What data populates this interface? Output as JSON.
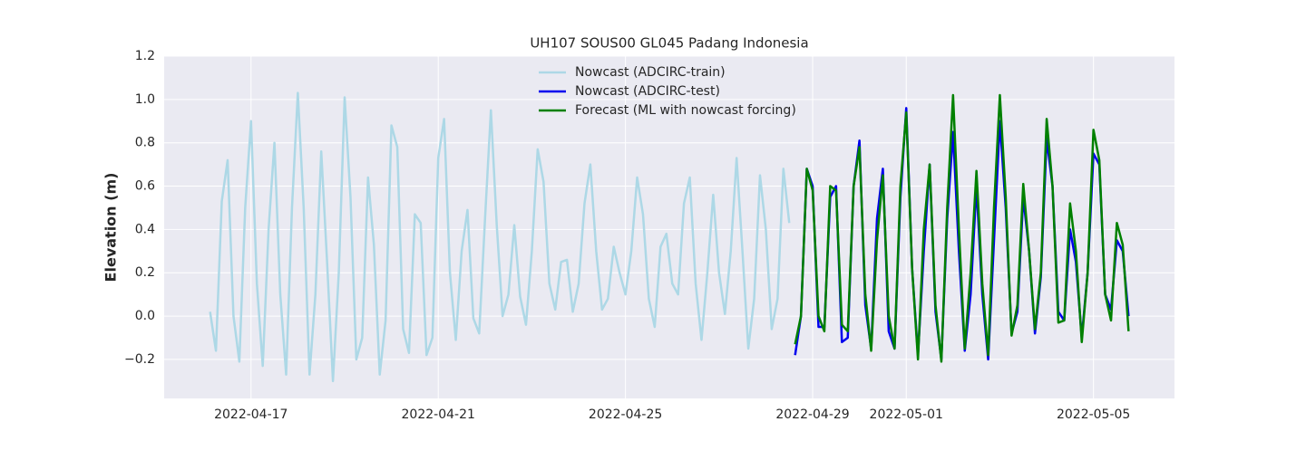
{
  "chart_data": {
    "type": "line",
    "title": "UH107 SOUS00 GL045 Padang Indonesia",
    "y_label": "Elevation (m)",
    "xlim": [
      "2022-04-15 03:27",
      "2022-05-06 17:33"
    ],
    "xticks": [
      "2022-04-17",
      "2022-04-21",
      "2022-04-25",
      "2022-04-29",
      "2022-05-01",
      "2022-05-05"
    ],
    "ylim": [
      -0.38,
      1.2
    ],
    "yticks": [
      {
        "value": -0.2,
        "label": "−0.2"
      },
      {
        "value": 0,
        "label": "0.0"
      },
      0.2,
      0.4,
      0.6,
      0.8,
      {
        "value": 1,
        "label": "1.0"
      },
      1.2
    ],
    "grid": true,
    "legend": "upper center",
    "series": [
      {
        "name": "Nowcast (ADCIRC-train)",
        "color": "#add8e6",
        "x": [
          "2022-04-16 03:00",
          "2022-04-16 06:00",
          "2022-04-16 09:00",
          "2022-04-16 12:00",
          "2022-04-16 15:00",
          "2022-04-16 18:00",
          "2022-04-16 21:00",
          "2022-04-17 00:00",
          "2022-04-17 03:00",
          "2022-04-17 06:00",
          "2022-04-17 09:00",
          "2022-04-17 12:00",
          "2022-04-17 15:00",
          "2022-04-17 18:00",
          "2022-04-17 21:00",
          "2022-04-18 00:00",
          "2022-04-18 03:00",
          "2022-04-18 06:00",
          "2022-04-18 09:00",
          "2022-04-18 12:00",
          "2022-04-18 15:00",
          "2022-04-18 18:00",
          "2022-04-18 21:00",
          "2022-04-19 00:00",
          "2022-04-19 03:00",
          "2022-04-19 06:00",
          "2022-04-19 09:00",
          "2022-04-19 12:00",
          "2022-04-19 15:00",
          "2022-04-19 18:00",
          "2022-04-19 21:00",
          "2022-04-20 00:00",
          "2022-04-20 03:00",
          "2022-04-20 06:00",
          "2022-04-20 09:00",
          "2022-04-20 12:00",
          "2022-04-20 15:00",
          "2022-04-20 18:00",
          "2022-04-20 21:00",
          "2022-04-21 00:00",
          "2022-04-21 03:00",
          "2022-04-21 06:00",
          "2022-04-21 09:00",
          "2022-04-21 12:00",
          "2022-04-21 15:00",
          "2022-04-21 18:00",
          "2022-04-21 21:00",
          "2022-04-22 00:00",
          "2022-04-22 03:00",
          "2022-04-22 06:00",
          "2022-04-22 09:00",
          "2022-04-22 12:00",
          "2022-04-22 15:00",
          "2022-04-22 18:00",
          "2022-04-22 21:00",
          "2022-04-23 00:00",
          "2022-04-23 03:00",
          "2022-04-23 06:00",
          "2022-04-23 09:00",
          "2022-04-23 12:00",
          "2022-04-23 15:00",
          "2022-04-23 18:00",
          "2022-04-23 21:00",
          "2022-04-24 00:00",
          "2022-04-24 03:00",
          "2022-04-24 06:00",
          "2022-04-24 09:00",
          "2022-04-24 12:00",
          "2022-04-24 15:00",
          "2022-04-24 18:00",
          "2022-04-24 21:00",
          "2022-04-25 00:00",
          "2022-04-25 03:00",
          "2022-04-25 06:00",
          "2022-04-25 09:00",
          "2022-04-25 12:00",
          "2022-04-25 15:00",
          "2022-04-25 18:00",
          "2022-04-25 21:00",
          "2022-04-26 00:00",
          "2022-04-26 03:00",
          "2022-04-26 06:00",
          "2022-04-26 09:00",
          "2022-04-26 12:00",
          "2022-04-26 15:00",
          "2022-04-26 18:00",
          "2022-04-26 21:00",
          "2022-04-27 00:00",
          "2022-04-27 03:00",
          "2022-04-27 06:00",
          "2022-04-27 09:00",
          "2022-04-27 12:00",
          "2022-04-27 15:00",
          "2022-04-27 18:00",
          "2022-04-27 21:00",
          "2022-04-28 00:00",
          "2022-04-28 03:00",
          "2022-04-28 06:00",
          "2022-04-28 09:00",
          "2022-04-28 12:00"
        ],
        "values": [
          0.02,
          -0.16,
          0.53,
          0.72,
          0.0,
          -0.21,
          0.5,
          0.9,
          0.15,
          -0.23,
          0.4,
          0.8,
          0.1,
          -0.27,
          0.5,
          1.03,
          0.5,
          -0.27,
          0.1,
          0.76,
          0.25,
          -0.3,
          0.2,
          1.01,
          0.55,
          -0.2,
          -0.1,
          0.64,
          0.33,
          -0.27,
          -0.02,
          0.88,
          0.78,
          -0.06,
          -0.17,
          0.47,
          0.43,
          -0.18,
          -0.1,
          0.73,
          0.91,
          0.2,
          -0.11,
          0.3,
          0.49,
          -0.01,
          -0.08,
          0.45,
          0.95,
          0.42,
          0.0,
          0.1,
          0.42,
          0.09,
          -0.04,
          0.3,
          0.77,
          0.62,
          0.15,
          0.03,
          0.25,
          0.26,
          0.02,
          0.15,
          0.52,
          0.7,
          0.3,
          0.03,
          0.08,
          0.32,
          0.2,
          0.1,
          0.3,
          0.64,
          0.47,
          0.08,
          -0.05,
          0.32,
          0.38,
          0.15,
          0.1,
          0.52,
          0.64,
          0.15,
          -0.11,
          0.2,
          0.56,
          0.2,
          0.01,
          0.3,
          0.73,
          0.3,
          -0.15,
          0.08,
          0.65,
          0.4,
          -0.06,
          0.08,
          0.68,
          0.43
        ]
      },
      {
        "name": "Nowcast (ADCIRC-test)",
        "color": "#0000ee",
        "x": [
          "2022-04-28 15:00",
          "2022-04-28 18:00",
          "2022-04-28 21:00",
          "2022-04-29 00:00",
          "2022-04-29 03:00",
          "2022-04-29 06:00",
          "2022-04-29 09:00",
          "2022-04-29 12:00",
          "2022-04-29 15:00",
          "2022-04-29 18:00",
          "2022-04-29 21:00",
          "2022-04-30 00:00",
          "2022-04-30 03:00",
          "2022-04-30 06:00",
          "2022-04-30 09:00",
          "2022-04-30 12:00",
          "2022-04-30 15:00",
          "2022-04-30 18:00",
          "2022-04-30 21:00",
          "2022-05-01 00:00",
          "2022-05-01 03:00",
          "2022-05-01 06:00",
          "2022-05-01 09:00",
          "2022-05-01 12:00",
          "2022-05-01 15:00",
          "2022-05-01 18:00",
          "2022-05-01 21:00",
          "2022-05-02 00:00",
          "2022-05-02 03:00",
          "2022-05-02 06:00",
          "2022-05-02 09:00",
          "2022-05-02 12:00",
          "2022-05-02 15:00",
          "2022-05-02 18:00",
          "2022-05-02 21:00",
          "2022-05-03 00:00",
          "2022-05-03 03:00",
          "2022-05-03 06:00",
          "2022-05-03 09:00",
          "2022-05-03 12:00",
          "2022-05-03 15:00",
          "2022-05-03 18:00",
          "2022-05-03 21:00",
          "2022-05-04 00:00",
          "2022-05-04 03:00",
          "2022-05-04 06:00",
          "2022-05-04 09:00",
          "2022-05-04 12:00",
          "2022-05-04 15:00",
          "2022-05-04 18:00",
          "2022-05-04 21:00",
          "2022-05-05 00:00",
          "2022-05-05 03:00",
          "2022-05-05 06:00",
          "2022-05-05 09:00",
          "2022-05-05 12:00",
          "2022-05-05 15:00",
          "2022-05-05 18:00"
        ],
        "values": [
          -0.18,
          0.0,
          0.68,
          0.6,
          -0.05,
          -0.05,
          0.55,
          0.6,
          -0.12,
          -0.1,
          0.6,
          0.81,
          0.05,
          -0.15,
          0.45,
          0.68,
          -0.07,
          -0.15,
          0.55,
          0.96,
          0.22,
          -0.18,
          0.3,
          0.7,
          0.02,
          -0.2,
          0.45,
          0.85,
          0.3,
          -0.16,
          0.1,
          0.6,
          0.1,
          -0.2,
          0.35,
          0.9,
          0.5,
          -0.08,
          0.02,
          0.55,
          0.3,
          -0.08,
          0.18,
          0.82,
          0.6,
          0.02,
          -0.02,
          0.4,
          0.25,
          -0.1,
          0.2,
          0.75,
          0.7,
          0.1,
          0.03,
          0.35,
          0.3,
          0.0
        ]
      },
      {
        "name": "Forecast (ML with nowcast forcing)",
        "color": "#008000",
        "x": [
          "2022-04-28 15:00",
          "2022-04-28 18:00",
          "2022-04-28 21:00",
          "2022-04-29 00:00",
          "2022-04-29 03:00",
          "2022-04-29 06:00",
          "2022-04-29 09:00",
          "2022-04-29 12:00",
          "2022-04-29 15:00",
          "2022-04-29 18:00",
          "2022-04-29 21:00",
          "2022-04-30 00:00",
          "2022-04-30 03:00",
          "2022-04-30 06:00",
          "2022-04-30 09:00",
          "2022-04-30 12:00",
          "2022-04-30 15:00",
          "2022-04-30 18:00",
          "2022-04-30 21:00",
          "2022-05-01 00:00",
          "2022-05-01 03:00",
          "2022-05-01 06:00",
          "2022-05-01 09:00",
          "2022-05-01 12:00",
          "2022-05-01 15:00",
          "2022-05-01 18:00",
          "2022-05-01 21:00",
          "2022-05-02 00:00",
          "2022-05-02 03:00",
          "2022-05-02 06:00",
          "2022-05-02 09:00",
          "2022-05-02 12:00",
          "2022-05-02 15:00",
          "2022-05-02 18:00",
          "2022-05-02 21:00",
          "2022-05-03 00:00",
          "2022-05-03 03:00",
          "2022-05-03 06:00",
          "2022-05-03 09:00",
          "2022-05-03 12:00",
          "2022-05-03 15:00",
          "2022-05-03 18:00",
          "2022-05-03 21:00",
          "2022-05-04 00:00",
          "2022-05-04 03:00",
          "2022-05-04 06:00",
          "2022-05-04 09:00",
          "2022-05-04 12:00",
          "2022-05-04 15:00",
          "2022-05-04 18:00",
          "2022-05-04 21:00",
          "2022-05-05 00:00",
          "2022-05-05 03:00",
          "2022-05-05 06:00",
          "2022-05-05 09:00",
          "2022-05-05 12:00",
          "2022-05-05 15:00",
          "2022-05-05 18:00"
        ],
        "values": [
          -0.13,
          0.0,
          0.68,
          0.58,
          0.0,
          -0.07,
          0.6,
          0.58,
          -0.04,
          -0.07,
          0.6,
          0.78,
          0.1,
          -0.16,
          0.35,
          0.65,
          0.0,
          -0.15,
          0.6,
          0.94,
          0.22,
          -0.2,
          0.4,
          0.7,
          0.05,
          -0.21,
          0.5,
          1.02,
          0.4,
          -0.15,
          0.2,
          0.67,
          0.15,
          -0.18,
          0.5,
          1.02,
          0.55,
          -0.09,
          0.05,
          0.61,
          0.3,
          -0.06,
          0.2,
          0.91,
          0.6,
          -0.03,
          -0.02,
          0.52,
          0.3,
          -0.12,
          0.2,
          0.86,
          0.72,
          0.1,
          -0.02,
          0.43,
          0.33,
          -0.07
        ]
      }
    ]
  }
}
